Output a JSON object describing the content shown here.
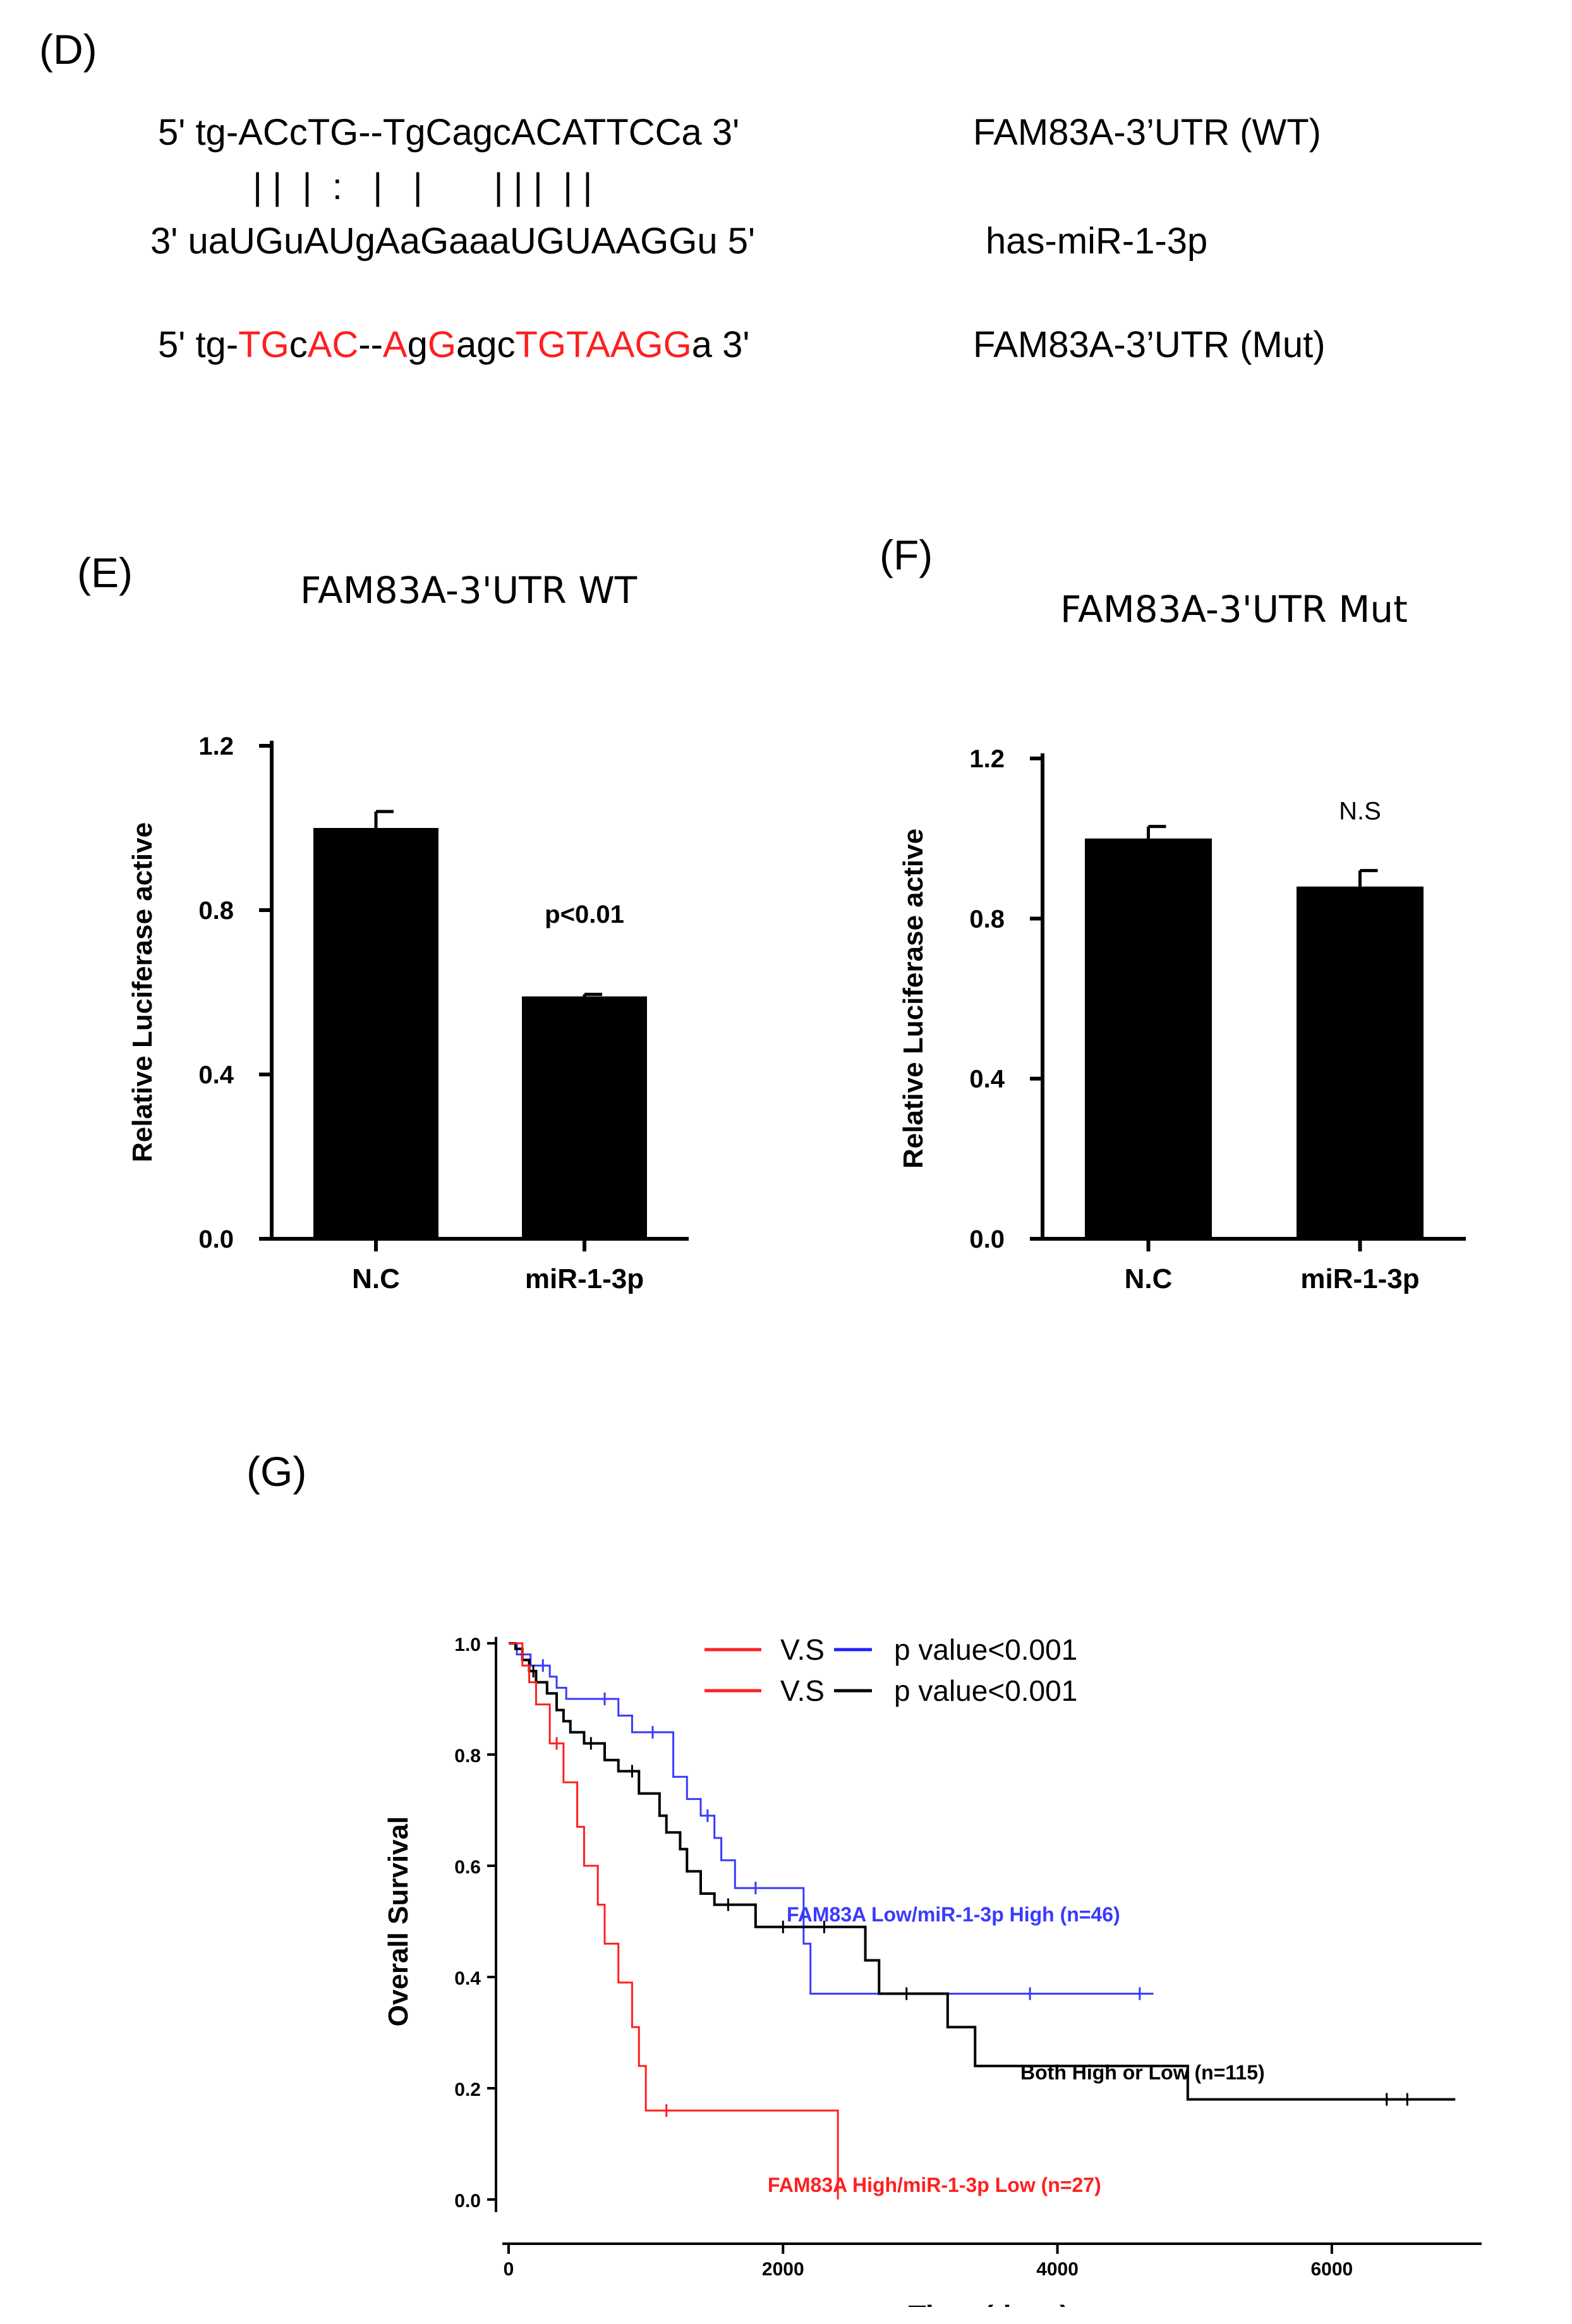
{
  "panels": {
    "d": "(D)",
    "e": "(E)",
    "f": "(F)",
    "g": "(G)"
  },
  "sequences": {
    "wt": "5' tg-ACcTG--TgCagcACATTCCa 3'",
    "pairs": "| |  |  :   |   |       | | |  | |",
    "mir": "3' uaUGuAUgAaGaaaUGUAAGGu 5'",
    "mut_segments": [
      {
        "text": "5' tg-",
        "color": "#000000"
      },
      {
        "text": "TG",
        "color": "#ff1f1f"
      },
      {
        "text": "c",
        "color": "#000000"
      },
      {
        "text": "AC",
        "color": "#ff1f1f"
      },
      {
        "text": "--",
        "color": "#000000"
      },
      {
        "text": "A",
        "color": "#ff1f1f"
      },
      {
        "text": "g",
        "color": "#000000"
      },
      {
        "text": "G",
        "color": "#ff1f1f"
      },
      {
        "text": "agc",
        "color": "#000000"
      },
      {
        "text": "TGTAAGG",
        "color": "#ff1f1f"
      },
      {
        "text": "a 3'",
        "color": "#000000"
      }
    ],
    "wt_label": "FAM83A-3’UTR (WT)",
    "mir_label": "has-miR-1-3p",
    "mut_label": "FAM83A-3’UTR (Mut)"
  },
  "chart_data": [
    {
      "id": "E",
      "type": "bar",
      "title": "FAM83A-3'UTR WT",
      "ylabel": "Relative Luciferase active",
      "xlabel": "",
      "categories": [
        "N.C",
        "miR-1-3p"
      ],
      "values": [
        1.0,
        0.59
      ],
      "errors": [
        0.04,
        0.005
      ],
      "ylim": [
        0,
        1.2
      ],
      "yticks": [
        "0.0",
        "0.4",
        "0.8",
        "1.2"
      ],
      "annotation": "p<0.01",
      "bar_color": "#000000"
    },
    {
      "id": "F",
      "type": "bar",
      "title": "FAM83A-3'UTR Mut",
      "ylabel": "Relative Luciferase active",
      "xlabel": "",
      "categories": [
        "N.C",
        "miR-1-3p"
      ],
      "values": [
        1.0,
        0.88
      ],
      "errors": [
        0.03,
        0.04
      ],
      "ylim": [
        0,
        1.2
      ],
      "yticks": [
        "0.0",
        "0.4",
        "0.8",
        "1.2"
      ],
      "annotation": "N.S",
      "bar_color": "#000000"
    },
    {
      "id": "G",
      "type": "line",
      "subtype": "kaplan-meier",
      "xlabel": "Time (days)",
      "ylabel": "Overall Survival",
      "xlim": [
        0,
        7000
      ],
      "ylim": [
        0,
        1.0
      ],
      "xticks": [
        "0",
        "2000",
        "4000",
        "6000"
      ],
      "yticks": [
        "0.0",
        "0.2",
        "0.4",
        "0.6",
        "0.8",
        "1.0"
      ],
      "legend": [
        {
          "left": "V.S",
          "right_color": "#1f1fff",
          "text": "p value<0.001"
        },
        {
          "left": "V.S",
          "right_color": "#000000",
          "text": "p value<0.001"
        }
      ],
      "series": [
        {
          "name": "FAM83A Low/miR-1-3p High (n=46)",
          "color": "#3a3aff",
          "steps": [
            [
              0,
              1.0
            ],
            [
              60,
              0.98
            ],
            [
              160,
              0.96
            ],
            [
              300,
              0.94
            ],
            [
              350,
              0.92
            ],
            [
              420,
              0.9
            ],
            [
              800,
              0.87
            ],
            [
              900,
              0.84
            ],
            [
              1200,
              0.76
            ],
            [
              1300,
              0.72
            ],
            [
              1400,
              0.69
            ],
            [
              1500,
              0.65
            ],
            [
              1550,
              0.61
            ],
            [
              1650,
              0.56
            ],
            [
              2150,
              0.46
            ],
            [
              2200,
              0.37
            ],
            [
              4700,
              0.37
            ]
          ],
          "censors": [
            [
              250,
              0.96
            ],
            [
              700,
              0.9
            ],
            [
              1050,
              0.84
            ],
            [
              1450,
              0.69
            ],
            [
              1800,
              0.56
            ],
            [
              3800,
              0.37
            ],
            [
              4600,
              0.37
            ]
          ]
        },
        {
          "name": "Both High or Low (n=115)",
          "color": "#000000",
          "steps": [
            [
              0,
              1.0
            ],
            [
              50,
              0.99
            ],
            [
              100,
              0.97
            ],
            [
              150,
              0.95
            ],
            [
              200,
              0.93
            ],
            [
              280,
              0.91
            ],
            [
              350,
              0.88
            ],
            [
              400,
              0.86
            ],
            [
              450,
              0.84
            ],
            [
              550,
              0.82
            ],
            [
              700,
              0.79
            ],
            [
              800,
              0.77
            ],
            [
              950,
              0.73
            ],
            [
              1100,
              0.69
            ],
            [
              1150,
              0.66
            ],
            [
              1250,
              0.63
            ],
            [
              1300,
              0.59
            ],
            [
              1400,
              0.55
            ],
            [
              1500,
              0.53
            ],
            [
              1800,
              0.49
            ],
            [
              2600,
              0.43
            ],
            [
              2700,
              0.37
            ],
            [
              3200,
              0.31
            ],
            [
              3400,
              0.24
            ],
            [
              4950,
              0.18
            ],
            [
              6900,
              0.18
            ]
          ],
          "censors": [
            [
              180,
              0.95
            ],
            [
              600,
              0.82
            ],
            [
              900,
              0.77
            ],
            [
              1600,
              0.53
            ],
            [
              2000,
              0.49
            ],
            [
              2300,
              0.49
            ],
            [
              2900,
              0.37
            ],
            [
              6400,
              0.18
            ],
            [
              6550,
              0.18
            ]
          ]
        },
        {
          "name": "FAM83A High/miR-1-3p Low (n=27)",
          "color": "#ff2020",
          "steps": [
            [
              0,
              1.0
            ],
            [
              100,
              0.96
            ],
            [
              150,
              0.93
            ],
            [
              200,
              0.89
            ],
            [
              300,
              0.82
            ],
            [
              400,
              0.75
            ],
            [
              500,
              0.67
            ],
            [
              550,
              0.6
            ],
            [
              650,
              0.53
            ],
            [
              700,
              0.46
            ],
            [
              800,
              0.39
            ],
            [
              900,
              0.31
            ],
            [
              950,
              0.24
            ],
            [
              1000,
              0.16
            ],
            [
              2400,
              0.16
            ],
            [
              2400,
              0.0
            ]
          ],
          "censors": [
            [
              350,
              0.82
            ],
            [
              1150,
              0.16
            ]
          ]
        }
      ]
    }
  ]
}
